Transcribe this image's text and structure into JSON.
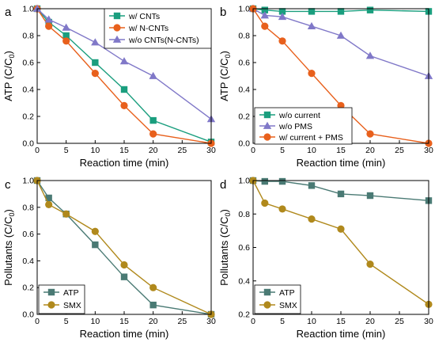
{
  "colors": {
    "teal": "#1a9e7e",
    "orange": "#e8601c",
    "purple": "#8078c8",
    "slate": "#4a7a74",
    "olive": "#b0891c"
  },
  "chart_data": [
    {
      "id": "a",
      "panel_label": "a",
      "type": "line",
      "xlabel": "Reaction time (min)",
      "ylabel_main": "ATP (C/C",
      "ylabel_sub": "0",
      "ylabel_close": ")",
      "xlim": [
        0,
        30
      ],
      "ylim": [
        0,
        1.0
      ],
      "xticks": [
        0,
        5,
        10,
        15,
        20,
        25,
        30
      ],
      "xtick_labels": [
        "0",
        "5",
        "10",
        "15",
        "20",
        "25",
        "30"
      ],
      "yticks": [
        0.0,
        0.2,
        0.4,
        0.6,
        0.8,
        1.0
      ],
      "ytick_labels": [
        "0.0",
        "0.2",
        "0.4",
        "0.6",
        "0.8",
        "1.0"
      ],
      "legend_position": "top-right",
      "series": [
        {
          "name": "w/ CNTs",
          "color": "#1a9e7e",
          "marker": "square",
          "x": [
            0,
            2,
            5,
            10,
            15,
            20,
            30
          ],
          "y": [
            1.0,
            0.9,
            0.8,
            0.6,
            0.4,
            0.17,
            0.01
          ]
        },
        {
          "name": "w/ N-CNTs",
          "color": "#e8601c",
          "marker": "circle",
          "x": [
            0,
            2,
            5,
            10,
            15,
            20,
            30
          ],
          "y": [
            1.0,
            0.87,
            0.76,
            0.52,
            0.28,
            0.07,
            0.0
          ]
        },
        {
          "name": "w/o CNTs(N-CNTs)",
          "color": "#8078c8",
          "marker": "triangle",
          "x": [
            0,
            2,
            5,
            10,
            15,
            20,
            30
          ],
          "y": [
            1.0,
            0.92,
            0.86,
            0.75,
            0.61,
            0.5,
            0.18
          ]
        }
      ]
    },
    {
      "id": "b",
      "panel_label": "b",
      "type": "line",
      "xlabel": "Reaction time (min)",
      "ylabel_main": "ATP (C/C",
      "ylabel_sub": "0",
      "ylabel_close": ")",
      "xlim": [
        0,
        30
      ],
      "ylim": [
        0,
        1.0
      ],
      "xticks": [
        0,
        5,
        10,
        15,
        20,
        25,
        30
      ],
      "xtick_labels": [
        "0",
        "5",
        "10",
        "15",
        "20",
        "25",
        "30"
      ],
      "yticks": [
        0.0,
        0.2,
        0.4,
        0.6,
        0.8,
        1.0
      ],
      "ytick_labels": [
        "0.0",
        "0.2",
        "0.4",
        "0.6",
        "0.8",
        "1.0"
      ],
      "legend_position": "bottom-left",
      "series": [
        {
          "name": "w/o current",
          "color": "#1a9e7e",
          "marker": "square",
          "x": [
            0,
            2,
            5,
            10,
            15,
            20,
            30
          ],
          "y": [
            1.0,
            0.99,
            0.98,
            0.98,
            0.98,
            0.99,
            0.98
          ]
        },
        {
          "name": "w/o PMS",
          "color": "#8078c8",
          "marker": "triangle",
          "x": [
            0,
            2,
            5,
            10,
            15,
            20,
            30
          ],
          "y": [
            1.0,
            0.95,
            0.94,
            0.87,
            0.8,
            0.65,
            0.5
          ]
        },
        {
          "name": "w/ current + PMS",
          "color": "#e8601c",
          "marker": "circle",
          "x": [
            0,
            2,
            5,
            10,
            15,
            20,
            30
          ],
          "y": [
            1.0,
            0.87,
            0.76,
            0.52,
            0.28,
            0.07,
            0.0
          ]
        }
      ]
    },
    {
      "id": "c",
      "panel_label": "c",
      "type": "line",
      "xlabel": "Reaction time (min)",
      "ylabel_main": "Pollutants (C/C",
      "ylabel_sub": "0",
      "ylabel_close": ")",
      "xlim": [
        0,
        30
      ],
      "ylim": [
        0,
        1.0
      ],
      "xticks": [
        0,
        5,
        10,
        15,
        20,
        25,
        30
      ],
      "xtick_labels": [
        "0",
        "5",
        "10",
        "15",
        "20",
        "25",
        "30"
      ],
      "yticks": [
        0.0,
        0.2,
        0.4,
        0.6,
        0.8,
        1.0
      ],
      "ytick_labels": [
        "0.0",
        "0.2",
        "0.4",
        "0.6",
        "0.8",
        "1.0"
      ],
      "legend_position": "bottom-left",
      "series": [
        {
          "name": "ATP",
          "color": "#4a7a74",
          "marker": "square",
          "x": [
            0,
            2,
            5,
            10,
            15,
            20,
            30
          ],
          "y": [
            1.0,
            0.87,
            0.75,
            0.52,
            0.28,
            0.07,
            0.0
          ]
        },
        {
          "name": "SMX",
          "color": "#b0891c",
          "marker": "circle",
          "x": [
            0,
            2,
            5,
            10,
            15,
            20,
            30
          ],
          "y": [
            1.0,
            0.82,
            0.75,
            0.62,
            0.37,
            0.2,
            0.0
          ]
        }
      ]
    },
    {
      "id": "d",
      "panel_label": "d",
      "type": "line",
      "xlabel": "Reaction time (min)",
      "ylabel_main": "Pollutants (C/C",
      "ylabel_sub": "0",
      "ylabel_close": ")",
      "xlim": [
        0,
        30
      ],
      "ylim": [
        0.2,
        1.0
      ],
      "xticks": [
        0,
        5,
        10,
        15,
        20,
        25,
        30
      ],
      "xtick_labels": [
        "0",
        "5",
        "10",
        "15",
        "20",
        "25",
        "30"
      ],
      "yticks": [
        0.2,
        0.4,
        0.6,
        0.8,
        1.0
      ],
      "ytick_labels": [
        "0.2",
        "0.4",
        "0.6",
        "0.8",
        "1.0"
      ],
      "legend_position": "bottom-left",
      "series": [
        {
          "name": "ATP",
          "color": "#4a7a74",
          "marker": "square",
          "x": [
            0,
            2,
            5,
            10,
            15,
            20,
            30
          ],
          "y": [
            1.0,
            0.995,
            0.995,
            0.97,
            0.92,
            0.91,
            0.88
          ]
        },
        {
          "name": "SMX",
          "color": "#b0891c",
          "marker": "circle",
          "x": [
            0,
            2,
            5,
            10,
            15,
            20,
            30
          ],
          "y": [
            1.0,
            0.865,
            0.83,
            0.77,
            0.71,
            0.5,
            0.26
          ]
        }
      ]
    }
  ]
}
